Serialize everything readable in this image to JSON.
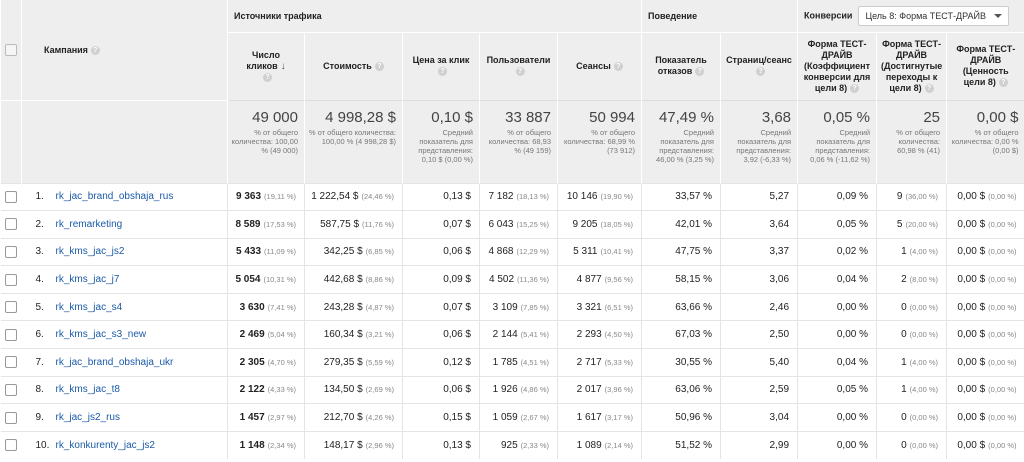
{
  "groups": {
    "traffic": "Источники трафика",
    "behavior": "Поведение",
    "conversions": "Конверсии",
    "goal_select": "Цель 8: Форма ТЕСТ-ДРАЙВ"
  },
  "columns": {
    "campaign": "Кампания",
    "clicks": "Число кликов",
    "cost": "Стоимость",
    "cpc": "Цена за клик",
    "users": "Пользователи",
    "sessions": "Сеансы",
    "bounce": "Показатель отказов",
    "pages": "Страниц/сеанс",
    "conv_rate": "Форма ТЕСТ-ДРАЙВ (Коэффициент конверсии для цели 8)",
    "completions": "Форма ТЕСТ-ДРАЙВ (Достигнутые переходы к цели 8)",
    "value": "Форма ТЕСТ-ДРАЙВ (Ценность цели 8)"
  },
  "totals": {
    "clicks": {
      "big": "49 000",
      "sub": "% от общего количества: 100,00 % (49 000)"
    },
    "cost": {
      "big": "4 998,28 $",
      "sub": "% от общего количества: 100,00 % (4 998,28 $)"
    },
    "cpc": {
      "big": "0,10 $",
      "sub": "Средний показатель для представления: 0,10 $ (0,00 %)"
    },
    "users": {
      "big": "33 887",
      "sub": "% от общего количества: 68,93 % (49 159)"
    },
    "sessions": {
      "big": "50 994",
      "sub": "% от общего количества: 68,99 % (73 912)"
    },
    "bounce": {
      "big": "47,49 %",
      "sub": "Средний показатель для представления: 46,00 % (3,25 %)"
    },
    "pages": {
      "big": "3,68",
      "sub": "Средний показатель для представления: 3,92 (-6,33 %)"
    },
    "conv_rate": {
      "big": "0,05 %",
      "sub": "Средний показатель для представления: 0,06 % (-11,62 %)"
    },
    "completions": {
      "big": "25",
      "sub": "% от общего количества: 60,98 % (41)"
    },
    "value": {
      "big": "0,00 $",
      "sub": "% от общего количества: 0,00 % (0,00 $)"
    }
  },
  "rows": [
    {
      "n": "1.",
      "campaign": "rk_jac_brand_obshaja_rus",
      "clicks": "9 363",
      "clicks_pct": "(19,11 %)",
      "cost": "1 222,54 $",
      "cost_pct": "(24,46 %)",
      "cpc": "0,13 $",
      "users": "7 182",
      "users_pct": "(18,13 %)",
      "sessions": "10 146",
      "sessions_pct": "(19,90 %)",
      "bounce": "33,57 %",
      "pages": "5,27",
      "conv": "0,09 %",
      "comp": "9",
      "comp_pct": "(36,00 %)",
      "value": "0,00 $",
      "value_pct": "(0,00 %)"
    },
    {
      "n": "2.",
      "campaign": "rk_remarketing",
      "clicks": "8 589",
      "clicks_pct": "(17,53 %)",
      "cost": "587,75 $",
      "cost_pct": "(11,76 %)",
      "cpc": "0,07 $",
      "users": "6 043",
      "users_pct": "(15,25 %)",
      "sessions": "9 205",
      "sessions_pct": "(18,05 %)",
      "bounce": "42,01 %",
      "pages": "3,64",
      "conv": "0,05 %",
      "comp": "5",
      "comp_pct": "(20,00 %)",
      "value": "0,00 $",
      "value_pct": "(0,00 %)"
    },
    {
      "n": "3.",
      "campaign": "rk_kms_jac_js2",
      "clicks": "5 433",
      "clicks_pct": "(11,09 %)",
      "cost": "342,25 $",
      "cost_pct": "(6,85 %)",
      "cpc": "0,06 $",
      "users": "4 868",
      "users_pct": "(12,29 %)",
      "sessions": "5 311",
      "sessions_pct": "(10,41 %)",
      "bounce": "47,75 %",
      "pages": "3,37",
      "conv": "0,02 %",
      "comp": "1",
      "comp_pct": "(4,00 %)",
      "value": "0,00 $",
      "value_pct": "(0,00 %)"
    },
    {
      "n": "4.",
      "campaign": "rk_kms_jac_j7",
      "clicks": "5 054",
      "clicks_pct": "(10,31 %)",
      "cost": "442,68 $",
      "cost_pct": "(8,86 %)",
      "cpc": "0,09 $",
      "users": "4 502",
      "users_pct": "(11,36 %)",
      "sessions": "4 877",
      "sessions_pct": "(9,56 %)",
      "bounce": "58,15 %",
      "pages": "3,06",
      "conv": "0,04 %",
      "comp": "2",
      "comp_pct": "(8,00 %)",
      "value": "0,00 $",
      "value_pct": "(0,00 %)"
    },
    {
      "n": "5.",
      "campaign": "rk_kms_jac_s4",
      "clicks": "3 630",
      "clicks_pct": "(7,41 %)",
      "cost": "243,28 $",
      "cost_pct": "(4,87 %)",
      "cpc": "0,07 $",
      "users": "3 109",
      "users_pct": "(7,85 %)",
      "sessions": "3 321",
      "sessions_pct": "(6,51 %)",
      "bounce": "63,66 %",
      "pages": "2,46",
      "conv": "0,00 %",
      "comp": "0",
      "comp_pct": "(0,00 %)",
      "value": "0,00 $",
      "value_pct": "(0,00 %)"
    },
    {
      "n": "6.",
      "campaign": "rk_kms_jac_s3_new",
      "clicks": "2 469",
      "clicks_pct": "(5,04 %)",
      "cost": "160,34 $",
      "cost_pct": "(3,21 %)",
      "cpc": "0,06 $",
      "users": "2 144",
      "users_pct": "(5,41 %)",
      "sessions": "2 293",
      "sessions_pct": "(4,50 %)",
      "bounce": "67,03 %",
      "pages": "2,50",
      "conv": "0,00 %",
      "comp": "0",
      "comp_pct": "(0,00 %)",
      "value": "0,00 $",
      "value_pct": "(0,00 %)"
    },
    {
      "n": "7.",
      "campaign": "rk_jac_brand_obshaja_ukr",
      "clicks": "2 305",
      "clicks_pct": "(4,70 %)",
      "cost": "279,35 $",
      "cost_pct": "(5,59 %)",
      "cpc": "0,12 $",
      "users": "1 785",
      "users_pct": "(4,51 %)",
      "sessions": "2 717",
      "sessions_pct": "(5,33 %)",
      "bounce": "30,55 %",
      "pages": "5,40",
      "conv": "0,04 %",
      "comp": "1",
      "comp_pct": "(4,00 %)",
      "value": "0,00 $",
      "value_pct": "(0,00 %)"
    },
    {
      "n": "8.",
      "campaign": "rk_kms_jac_t8",
      "clicks": "2 122",
      "clicks_pct": "(4,33 %)",
      "cost": "134,50 $",
      "cost_pct": "(2,69 %)",
      "cpc": "0,06 $",
      "users": "1 926",
      "users_pct": "(4,86 %)",
      "sessions": "2 017",
      "sessions_pct": "(3,96 %)",
      "bounce": "63,06 %",
      "pages": "2,59",
      "conv": "0,05 %",
      "comp": "1",
      "comp_pct": "(4,00 %)",
      "value": "0,00 $",
      "value_pct": "(0,00 %)"
    },
    {
      "n": "9.",
      "campaign": "rk_jac_js2_rus",
      "clicks": "1 457",
      "clicks_pct": "(2,97 %)",
      "cost": "212,70 $",
      "cost_pct": "(4,26 %)",
      "cpc": "0,15 $",
      "users": "1 059",
      "users_pct": "(2,67 %)",
      "sessions": "1 617",
      "sessions_pct": "(3,17 %)",
      "bounce": "50,96 %",
      "pages": "3,04",
      "conv": "0,00 %",
      "comp": "0",
      "comp_pct": "(0,00 %)",
      "value": "0,00 $",
      "value_pct": "(0,00 %)"
    },
    {
      "n": "10.",
      "campaign": "rk_konkurenty_jac_js2",
      "clicks": "1 148",
      "clicks_pct": "(2,34 %)",
      "cost": "148,17 $",
      "cost_pct": "(2,96 %)",
      "cpc": "0,13 $",
      "users": "925",
      "users_pct": "(2,33 %)",
      "sessions": "1 089",
      "sessions_pct": "(2,14 %)",
      "bounce": "51,52 %",
      "pages": "2,99",
      "conv": "0,00 %",
      "comp": "0",
      "comp_pct": "(0,00 %)",
      "value": "0,00 $",
      "value_pct": "(0,00 %)"
    }
  ]
}
